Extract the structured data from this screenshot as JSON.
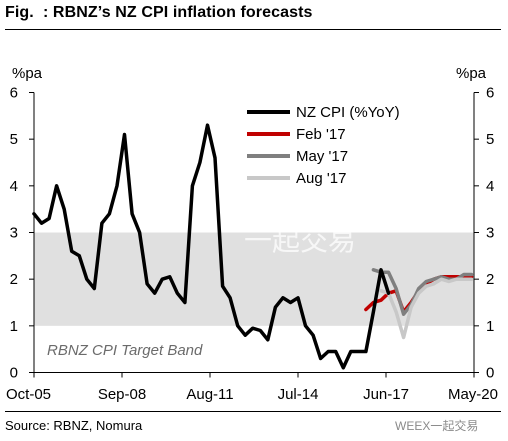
{
  "figure": {
    "label": "Fig.",
    "title": ": RBNZ’s NZ CPI inflation forecasts",
    "source": "Source: RBNZ, Nomura",
    "watermark_center": "一起交易",
    "watermark_bottom": "WEEX一起交易"
  },
  "chart_data": {
    "type": "line",
    "left_axis_unit": "%pa",
    "right_axis_unit": "%pa",
    "ylim": [
      0,
      6
    ],
    "yticks": [
      "0",
      "1",
      "2",
      "3",
      "4",
      "5",
      "6"
    ],
    "xlim": [
      "2005-10",
      "2020-05"
    ],
    "xtick_labels": [
      {
        "label": "Oct-05",
        "date": "2005-10"
      },
      {
        "label": "Sep-08",
        "date": "2008-09"
      },
      {
        "label": "Aug-11",
        "date": "2011-08"
      },
      {
        "label": "Jul-14",
        "date": "2014-07"
      },
      {
        "label": "Jun-17",
        "date": "2017-06"
      },
      {
        "label": "May-20",
        "date": "2020-05"
      }
    ],
    "target_band": {
      "low": 1,
      "high": 3,
      "label": "RBNZ CPI Target Band",
      "color": "#e0e0e0"
    },
    "grid": false,
    "legend_position": "top-right",
    "series": [
      {
        "name": "NZ CPI (%YoY)",
        "color": "#000000",
        "points": [
          [
            "2005-10",
            3.4
          ],
          [
            "2006-01",
            3.2
          ],
          [
            "2006-04",
            3.3
          ],
          [
            "2006-07",
            4.0
          ],
          [
            "2006-10",
            3.5
          ],
          [
            "2007-01",
            2.6
          ],
          [
            "2007-04",
            2.5
          ],
          [
            "2007-07",
            2.0
          ],
          [
            "2007-10",
            1.8
          ],
          [
            "2008-01",
            3.2
          ],
          [
            "2008-04",
            3.4
          ],
          [
            "2008-07",
            4.0
          ],
          [
            "2008-10",
            5.1
          ],
          [
            "2009-01",
            3.4
          ],
          [
            "2009-04",
            3.0
          ],
          [
            "2009-07",
            1.9
          ],
          [
            "2009-10",
            1.7
          ],
          [
            "2010-01",
            2.0
          ],
          [
            "2010-04",
            2.05
          ],
          [
            "2010-07",
            1.7
          ],
          [
            "2010-10",
            1.5
          ],
          [
            "2011-01",
            4.0
          ],
          [
            "2011-04",
            4.5
          ],
          [
            "2011-07",
            5.3
          ],
          [
            "2011-10",
            4.6
          ],
          [
            "2012-01",
            1.85
          ],
          [
            "2012-04",
            1.6
          ],
          [
            "2012-07",
            1.0
          ],
          [
            "2012-10",
            0.8
          ],
          [
            "2013-01",
            0.95
          ],
          [
            "2013-04",
            0.9
          ],
          [
            "2013-07",
            0.7
          ],
          [
            "2013-10",
            1.4
          ],
          [
            "2014-01",
            1.6
          ],
          [
            "2014-04",
            1.5
          ],
          [
            "2014-07",
            1.6
          ],
          [
            "2014-10",
            1.0
          ],
          [
            "2015-01",
            0.8
          ],
          [
            "2015-04",
            0.3
          ],
          [
            "2015-07",
            0.45
          ],
          [
            "2015-10",
            0.45
          ],
          [
            "2016-01",
            0.1
          ],
          [
            "2016-04",
            0.45
          ],
          [
            "2016-07",
            0.45
          ],
          [
            "2016-10",
            0.45
          ],
          [
            "2017-01",
            1.3
          ],
          [
            "2017-04",
            2.2
          ],
          [
            "2017-07",
            1.7
          ]
        ]
      },
      {
        "name": "Feb '17",
        "color": "#c00000",
        "points": [
          [
            "2016-10",
            1.35
          ],
          [
            "2017-01",
            1.5
          ],
          [
            "2017-04",
            1.55
          ],
          [
            "2017-07",
            1.7
          ],
          [
            "2017-10",
            1.75
          ],
          [
            "2018-01",
            1.3
          ],
          [
            "2018-04",
            1.5
          ],
          [
            "2018-07",
            1.75
          ],
          [
            "2018-10",
            1.9
          ],
          [
            "2019-01",
            2.0
          ],
          [
            "2019-04",
            2.05
          ],
          [
            "2019-07",
            2.05
          ],
          [
            "2019-10",
            2.05
          ],
          [
            "2020-01",
            2.05
          ],
          [
            "2020-04",
            2.05
          ]
        ]
      },
      {
        "name": "May '17",
        "color": "#7f7f7f",
        "points": [
          [
            "2017-01",
            2.2
          ],
          [
            "2017-04",
            2.15
          ],
          [
            "2017-07",
            2.15
          ],
          [
            "2017-10",
            1.8
          ],
          [
            "2018-01",
            1.25
          ],
          [
            "2018-04",
            1.45
          ],
          [
            "2018-07",
            1.8
          ],
          [
            "2018-10",
            1.95
          ],
          [
            "2019-01",
            2.0
          ],
          [
            "2019-04",
            2.05
          ],
          [
            "2019-07",
            2.0
          ],
          [
            "2019-10",
            2.0
          ],
          [
            "2020-01",
            2.1
          ],
          [
            "2020-04",
            2.1
          ]
        ]
      },
      {
        "name": "Aug '17",
        "color": "#c8c8c8",
        "points": [
          [
            "2017-04",
            1.75
          ],
          [
            "2017-07",
            1.7
          ],
          [
            "2017-10",
            1.3
          ],
          [
            "2018-01",
            0.75
          ],
          [
            "2018-04",
            1.4
          ],
          [
            "2018-07",
            1.7
          ],
          [
            "2018-10",
            1.85
          ],
          [
            "2019-01",
            1.9
          ],
          [
            "2019-04",
            2.0
          ],
          [
            "2019-07",
            1.95
          ],
          [
            "2019-10",
            2.0
          ],
          [
            "2020-01",
            2.0
          ],
          [
            "2020-04",
            2.0
          ]
        ]
      }
    ]
  }
}
